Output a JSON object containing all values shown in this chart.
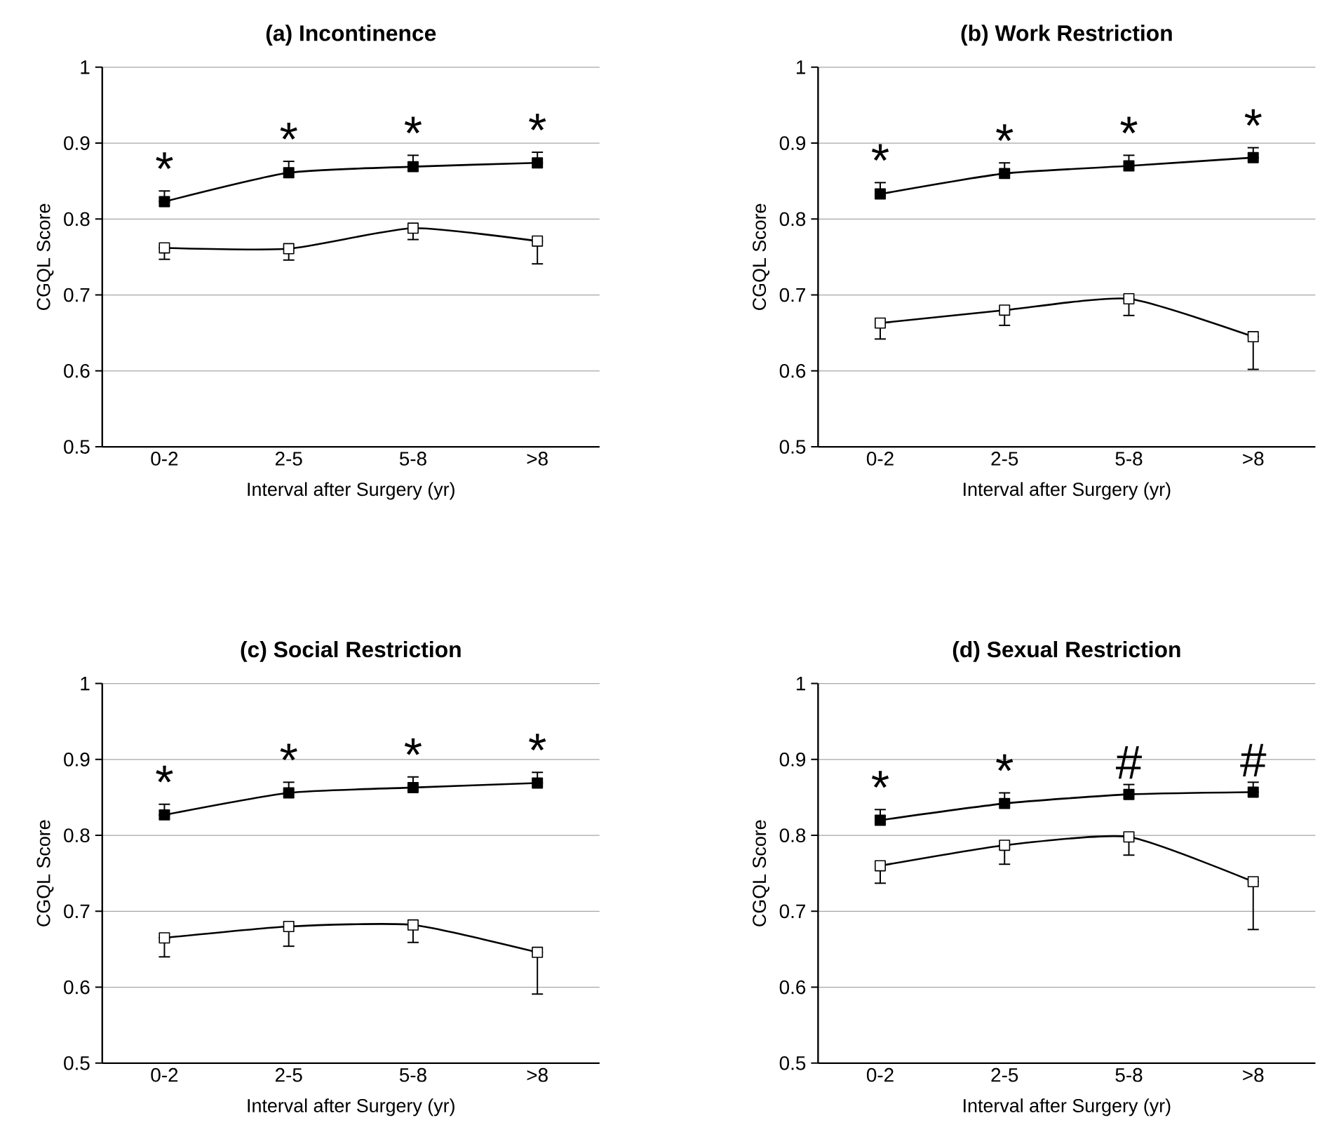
{
  "chart_data": [
    {
      "type": "line",
      "title": "(a) Incontinence",
      "xlabel": "Interval after Surgery (yr)",
      "ylabel": "CGQL Score",
      "categories": [
        "0-2",
        "2-5",
        "5-8",
        ">8"
      ],
      "ylim": [
        0.5,
        1
      ],
      "yticks": [
        0.5,
        0.6,
        0.7,
        0.8,
        0.9,
        1
      ],
      "grid": "y",
      "marker": "square",
      "series": [
        {
          "color": "#000000",
          "values": [
            0.823,
            0.861,
            0.869,
            0.874
          ],
          "errors": [
            [
              0.823,
              0.837
            ],
            [
              0.861,
              0.876
            ],
            [
              0.869,
              0.884
            ],
            [
              0.874,
              0.888
            ]
          ]
        },
        {
          "color": "#000000",
          "values": [
            0.762,
            0.761,
            0.788,
            0.771
          ],
          "errors": [
            [
              0.747,
              0.762
            ],
            [
              0.746,
              0.761
            ],
            [
              0.773,
              0.788
            ],
            [
              0.741,
              0.771
            ]
          ]
        }
      ],
      "annotations": [
        "*",
        "*",
        "*",
        "*"
      ]
    },
    {
      "type": "line",
      "title": "(b) Work Restriction",
      "xlabel": "Interval after Surgery (yr)",
      "ylabel": "CGQL Score",
      "categories": [
        "0-2",
        "2-5",
        "5-8",
        ">8"
      ],
      "ylim": [
        0.5,
        1
      ],
      "yticks": [
        0.5,
        0.6,
        0.7,
        0.8,
        0.9,
        1
      ],
      "grid": "y",
      "marker": "square",
      "series": [
        {
          "color": "#000000",
          "values": [
            0.833,
            0.86,
            0.87,
            0.881
          ],
          "errors": [
            [
              0.833,
              0.848
            ],
            [
              0.86,
              0.874
            ],
            [
              0.87,
              0.884
            ],
            [
              0.881,
              0.894
            ]
          ]
        },
        {
          "color": "#000000",
          "values": [
            0.663,
            0.68,
            0.695,
            0.645
          ],
          "errors": [
            [
              0.642,
              0.663
            ],
            [
              0.66,
              0.68
            ],
            [
              0.673,
              0.695
            ],
            [
              0.602,
              0.645
            ]
          ]
        }
      ],
      "annotations": [
        "*",
        "*",
        "*",
        "*"
      ]
    },
    {
      "type": "line",
      "title": "(c) Social Restriction",
      "xlabel": "Interval after Surgery (yr)",
      "ylabel": "CGQL Score",
      "categories": [
        "0-2",
        "2-5",
        "5-8",
        ">8"
      ],
      "ylim": [
        0.5,
        1
      ],
      "yticks": [
        0.5,
        0.6,
        0.7,
        0.8,
        0.9,
        1
      ],
      "grid": "y",
      "marker": "square",
      "series": [
        {
          "color": "#000000",
          "values": [
            0.827,
            0.856,
            0.863,
            0.869
          ],
          "errors": [
            [
              0.827,
              0.841
            ],
            [
              0.856,
              0.87
            ],
            [
              0.863,
              0.877
            ],
            [
              0.869,
              0.883
            ]
          ]
        },
        {
          "color": "#000000",
          "values": [
            0.665,
            0.68,
            0.682,
            0.646
          ],
          "errors": [
            [
              0.64,
              0.665
            ],
            [
              0.654,
              0.68
            ],
            [
              0.659,
              0.682
            ],
            [
              0.591,
              0.646
            ]
          ]
        }
      ],
      "annotations": [
        "*",
        "*",
        "*",
        "*"
      ]
    },
    {
      "type": "line",
      "title": "(d) Sexual Restriction",
      "xlabel": "Interval after Surgery (yr)",
      "ylabel": "CGQL Score",
      "categories": [
        "0-2",
        "2-5",
        "5-8",
        ">8"
      ],
      "ylim": [
        0.5,
        1
      ],
      "yticks": [
        0.5,
        0.6,
        0.7,
        0.8,
        0.9,
        1
      ],
      "grid": "y",
      "marker": "square",
      "series": [
        {
          "color": "#000000",
          "values": [
            0.82,
            0.842,
            0.854,
            0.857
          ],
          "errors": [
            [
              0.82,
              0.834
            ],
            [
              0.842,
              0.856
            ],
            [
              0.854,
              0.867
            ],
            [
              0.857,
              0.87
            ]
          ]
        },
        {
          "color": "#000000",
          "values": [
            0.76,
            0.787,
            0.798,
            0.739
          ],
          "errors": [
            [
              0.737,
              0.76
            ],
            [
              0.762,
              0.787
            ],
            [
              0.774,
              0.798
            ],
            [
              0.676,
              0.739
            ]
          ]
        }
      ],
      "annotations": [
        "*",
        "*",
        "#",
        "#"
      ]
    }
  ]
}
